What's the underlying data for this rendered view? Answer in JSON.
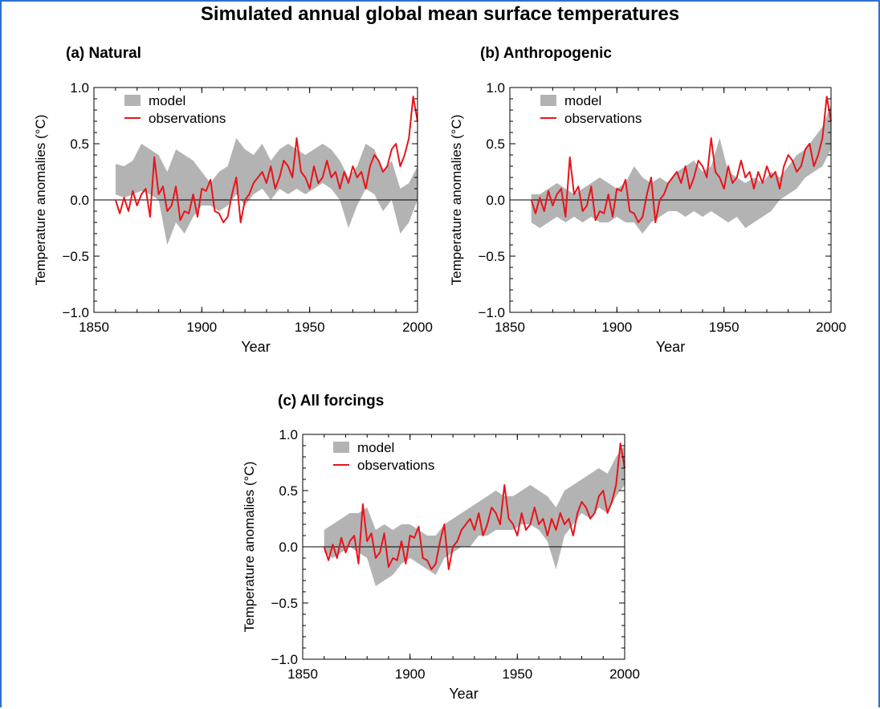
{
  "figure": {
    "title": "Simulated annual global mean surface temperatures"
  },
  "colors": {
    "model": "#b3b3b3",
    "observations": "#e8141a",
    "frame": "#2f6fd0",
    "axis": "#000000"
  },
  "chart_data": [
    {
      "type": "area",
      "panel_title": "(a) Natural",
      "xlabel": "Year",
      "ylabel": "Temperature anomalies (°C)",
      "xlim": [
        1850,
        2000
      ],
      "ylim": [
        -1.0,
        1.0
      ],
      "xticks": [
        1850,
        1900,
        1950,
        2000
      ],
      "yticks": [
        -1.0,
        -0.5,
        0.0,
        0.5,
        1.0
      ],
      "ytick_labels": [
        "−1.0",
        "−0.5",
        "0.0",
        "0.5",
        "1.0"
      ],
      "legend": [
        "model",
        "observations"
      ],
      "legend_position": "top-left",
      "grid": false,
      "series": [
        {
          "name": "model",
          "kind": "band",
          "x": [
            1860,
            1864,
            1868,
            1872,
            1876,
            1880,
            1884,
            1888,
            1892,
            1896,
            1900,
            1904,
            1908,
            1912,
            1916,
            1920,
            1924,
            1928,
            1932,
            1936,
            1940,
            1944,
            1948,
            1952,
            1956,
            1960,
            1964,
            1968,
            1972,
            1976,
            1980,
            1984,
            1988,
            1992,
            1996,
            2000
          ],
          "lower": [
            0.05,
            0.02,
            0.05,
            0.08,
            0.05,
            0.0,
            -0.4,
            -0.2,
            -0.3,
            -0.15,
            -0.05,
            -0.05,
            -0.1,
            -0.05,
            0.05,
            -0.05,
            0.05,
            0.1,
            0.0,
            0.1,
            0.05,
            0.1,
            0.05,
            0.1,
            0.15,
            0.1,
            0.0,
            -0.25,
            -0.05,
            0.1,
            0.05,
            -0.1,
            0.0,
            -0.3,
            -0.2,
            0.0
          ],
          "upper": [
            0.32,
            0.3,
            0.35,
            0.5,
            0.45,
            0.4,
            0.25,
            0.45,
            0.4,
            0.35,
            0.25,
            0.15,
            0.25,
            0.3,
            0.55,
            0.45,
            0.4,
            0.5,
            0.35,
            0.45,
            0.5,
            0.45,
            0.4,
            0.45,
            0.5,
            0.45,
            0.35,
            0.2,
            0.3,
            0.5,
            0.45,
            0.25,
            0.35,
            0.1,
            0.15,
            0.3
          ]
        },
        {
          "name": "observations",
          "kind": "line",
          "x": [
            1860,
            1862,
            1864,
            1866,
            1868,
            1870,
            1872,
            1874,
            1876,
            1878,
            1880,
            1882,
            1884,
            1886,
            1888,
            1890,
            1892,
            1894,
            1896,
            1898,
            1900,
            1902,
            1904,
            1906,
            1908,
            1910,
            1912,
            1914,
            1916,
            1918,
            1920,
            1922,
            1924,
            1926,
            1928,
            1930,
            1932,
            1934,
            1936,
            1938,
            1940,
            1942,
            1944,
            1946,
            1948,
            1950,
            1952,
            1954,
            1956,
            1958,
            1960,
            1962,
            1964,
            1966,
            1968,
            1970,
            1972,
            1974,
            1976,
            1978,
            1980,
            1982,
            1984,
            1986,
            1988,
            1990,
            1992,
            1994,
            1996,
            1998,
            2000
          ],
          "y": [
            0.0,
            -0.12,
            0.02,
            -0.1,
            0.08,
            -0.05,
            0.05,
            0.1,
            -0.15,
            0.38,
            0.05,
            0.12,
            -0.1,
            -0.05,
            0.12,
            -0.18,
            -0.1,
            -0.12,
            0.05,
            -0.15,
            0.1,
            0.08,
            0.18,
            -0.1,
            -0.12,
            -0.2,
            -0.15,
            0.05,
            0.2,
            -0.2,
            0.0,
            0.05,
            0.15,
            0.2,
            0.25,
            0.15,
            0.3,
            0.1,
            0.2,
            0.35,
            0.3,
            0.2,
            0.55,
            0.25,
            0.2,
            0.1,
            0.3,
            0.15,
            0.2,
            0.35,
            0.2,
            0.25,
            0.1,
            0.25,
            0.15,
            0.3,
            0.2,
            0.25,
            0.1,
            0.3,
            0.4,
            0.35,
            0.25,
            0.3,
            0.45,
            0.5,
            0.3,
            0.4,
            0.55,
            0.92,
            0.7
          ]
        }
      ]
    },
    {
      "type": "area",
      "panel_title": "(b) Anthropogenic",
      "xlabel": "Year",
      "ylabel": "Temperature anomalies (°C)",
      "xlim": [
        1850,
        2000
      ],
      "ylim": [
        -1.0,
        1.0
      ],
      "xticks": [
        1850,
        1900,
        1950,
        2000
      ],
      "yticks": [
        -1.0,
        -0.5,
        0.0,
        0.5,
        1.0
      ],
      "ytick_labels": [
        "−1.0",
        "−0.5",
        "0.0",
        "0.5",
        "1.0"
      ],
      "legend": [
        "model",
        "observations"
      ],
      "legend_position": "top-left",
      "grid": false,
      "series": [
        {
          "name": "model",
          "kind": "band",
          "x": [
            1860,
            1864,
            1868,
            1872,
            1876,
            1880,
            1884,
            1888,
            1892,
            1896,
            1900,
            1904,
            1908,
            1912,
            1916,
            1920,
            1924,
            1928,
            1932,
            1936,
            1940,
            1944,
            1948,
            1952,
            1956,
            1960,
            1964,
            1968,
            1972,
            1976,
            1980,
            1984,
            1988,
            1992,
            1996,
            2000
          ],
          "lower": [
            -0.2,
            -0.25,
            -0.2,
            -0.15,
            -0.2,
            -0.15,
            -0.2,
            -0.15,
            -0.2,
            -0.2,
            -0.15,
            -0.2,
            -0.2,
            -0.3,
            -0.2,
            -0.15,
            -0.1,
            -0.1,
            -0.15,
            -0.1,
            -0.15,
            -0.1,
            -0.15,
            -0.2,
            -0.15,
            -0.25,
            -0.2,
            -0.15,
            -0.1,
            0.0,
            0.05,
            0.1,
            0.2,
            0.25,
            0.3,
            0.45
          ],
          "upper": [
            0.05,
            0.05,
            0.1,
            0.15,
            0.1,
            0.05,
            0.1,
            0.15,
            0.2,
            0.15,
            0.1,
            0.15,
            0.3,
            0.2,
            0.15,
            0.2,
            0.15,
            0.25,
            0.3,
            0.35,
            0.25,
            0.3,
            0.55,
            0.25,
            0.2,
            0.15,
            0.2,
            0.15,
            0.25,
            0.2,
            0.3,
            0.4,
            0.45,
            0.55,
            0.65,
            0.85
          ]
        },
        {
          "name": "observations",
          "kind": "line",
          "x": [
            1860,
            1862,
            1864,
            1866,
            1868,
            1870,
            1872,
            1874,
            1876,
            1878,
            1880,
            1882,
            1884,
            1886,
            1888,
            1890,
            1892,
            1894,
            1896,
            1898,
            1900,
            1902,
            1904,
            1906,
            1908,
            1910,
            1912,
            1914,
            1916,
            1918,
            1920,
            1922,
            1924,
            1926,
            1928,
            1930,
            1932,
            1934,
            1936,
            1938,
            1940,
            1942,
            1944,
            1946,
            1948,
            1950,
            1952,
            1954,
            1956,
            1958,
            1960,
            1962,
            1964,
            1966,
            1968,
            1970,
            1972,
            1974,
            1976,
            1978,
            1980,
            1982,
            1984,
            1986,
            1988,
            1990,
            1992,
            1994,
            1996,
            1998,
            2000
          ],
          "y": [
            0.0,
            -0.12,
            0.02,
            -0.1,
            0.08,
            -0.05,
            0.05,
            0.1,
            -0.15,
            0.38,
            0.05,
            0.12,
            -0.1,
            -0.05,
            0.12,
            -0.18,
            -0.1,
            -0.12,
            0.05,
            -0.15,
            0.1,
            0.08,
            0.18,
            -0.1,
            -0.12,
            -0.2,
            -0.15,
            0.05,
            0.2,
            -0.2,
            0.0,
            0.05,
            0.15,
            0.2,
            0.25,
            0.15,
            0.3,
            0.1,
            0.2,
            0.35,
            0.3,
            0.2,
            0.55,
            0.25,
            0.2,
            0.1,
            0.3,
            0.15,
            0.2,
            0.35,
            0.2,
            0.25,
            0.1,
            0.25,
            0.15,
            0.3,
            0.2,
            0.25,
            0.1,
            0.3,
            0.4,
            0.35,
            0.25,
            0.3,
            0.45,
            0.5,
            0.3,
            0.4,
            0.55,
            0.92,
            0.7
          ]
        }
      ]
    },
    {
      "type": "area",
      "panel_title": "(c) All forcings",
      "xlabel": "Year",
      "ylabel": "Temperature anomalies (°C)",
      "xlim": [
        1850,
        2000
      ],
      "ylim": [
        -1.0,
        1.0
      ],
      "xticks": [
        1850,
        1900,
        1950,
        2000
      ],
      "yticks": [
        -1.0,
        -0.5,
        0.0,
        0.5,
        1.0
      ],
      "ytick_labels": [
        "−1.0",
        "−0.5",
        "0.0",
        "0.5",
        "1.0"
      ],
      "legend": [
        "model",
        "observations"
      ],
      "legend_position": "top-left",
      "grid": false,
      "series": [
        {
          "name": "model",
          "kind": "band",
          "x": [
            1860,
            1864,
            1868,
            1872,
            1876,
            1880,
            1884,
            1888,
            1892,
            1896,
            1900,
            1904,
            1908,
            1912,
            1916,
            1920,
            1924,
            1928,
            1932,
            1936,
            1940,
            1944,
            1948,
            1952,
            1956,
            1960,
            1964,
            1968,
            1972,
            1976,
            1980,
            1984,
            1988,
            1992,
            1996,
            2000
          ],
          "lower": [
            -0.05,
            -0.1,
            -0.05,
            0.0,
            -0.05,
            -0.1,
            -0.35,
            -0.3,
            -0.25,
            -0.15,
            -0.1,
            -0.15,
            -0.2,
            -0.25,
            -0.1,
            -0.05,
            0.0,
            0.0,
            0.1,
            0.1,
            0.15,
            0.15,
            0.15,
            0.2,
            0.2,
            0.15,
            0.05,
            -0.2,
            0.1,
            0.2,
            0.3,
            0.25,
            0.35,
            0.3,
            0.45,
            0.55
          ],
          "upper": [
            0.15,
            0.2,
            0.25,
            0.3,
            0.3,
            0.35,
            0.15,
            0.2,
            0.15,
            0.2,
            0.2,
            0.15,
            0.1,
            0.1,
            0.2,
            0.25,
            0.3,
            0.35,
            0.4,
            0.45,
            0.5,
            0.45,
            0.45,
            0.5,
            0.55,
            0.5,
            0.45,
            0.35,
            0.5,
            0.55,
            0.6,
            0.65,
            0.7,
            0.65,
            0.8,
            0.9
          ]
        },
        {
          "name": "observations",
          "kind": "line",
          "x": [
            1860,
            1862,
            1864,
            1866,
            1868,
            1870,
            1872,
            1874,
            1876,
            1878,
            1880,
            1882,
            1884,
            1886,
            1888,
            1890,
            1892,
            1894,
            1896,
            1898,
            1900,
            1902,
            1904,
            1906,
            1908,
            1910,
            1912,
            1914,
            1916,
            1918,
            1920,
            1922,
            1924,
            1926,
            1928,
            1930,
            1932,
            1934,
            1936,
            1938,
            1940,
            1942,
            1944,
            1946,
            1948,
            1950,
            1952,
            1954,
            1956,
            1958,
            1960,
            1962,
            1964,
            1966,
            1968,
            1970,
            1972,
            1974,
            1976,
            1978,
            1980,
            1982,
            1984,
            1986,
            1988,
            1990,
            1992,
            1994,
            1996,
            1998,
            2000
          ],
          "y": [
            0.0,
            -0.12,
            0.02,
            -0.1,
            0.08,
            -0.05,
            0.05,
            0.1,
            -0.15,
            0.38,
            0.05,
            0.12,
            -0.1,
            -0.05,
            0.12,
            -0.18,
            -0.1,
            -0.12,
            0.05,
            -0.15,
            0.1,
            0.08,
            0.18,
            -0.1,
            -0.12,
            -0.2,
            -0.15,
            0.05,
            0.2,
            -0.2,
            0.0,
            0.05,
            0.15,
            0.2,
            0.25,
            0.15,
            0.3,
            0.1,
            0.2,
            0.35,
            0.3,
            0.2,
            0.55,
            0.25,
            0.2,
            0.1,
            0.3,
            0.15,
            0.2,
            0.35,
            0.2,
            0.25,
            0.1,
            0.25,
            0.15,
            0.3,
            0.2,
            0.25,
            0.1,
            0.3,
            0.4,
            0.35,
            0.25,
            0.3,
            0.45,
            0.5,
            0.3,
            0.4,
            0.55,
            0.92,
            0.7
          ]
        }
      ]
    }
  ]
}
